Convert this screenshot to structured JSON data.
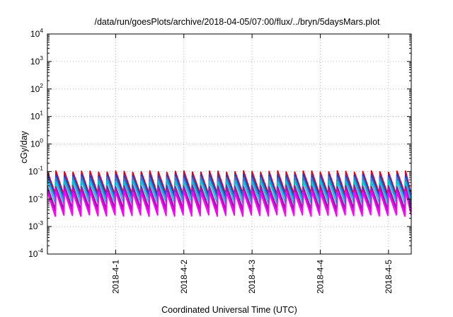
{
  "chart_data": {
    "type": "line",
    "title": "/data/run/goesPlots/archive/2018-04-05/07:00/flux/../bryn/5daysMars.plot",
    "xlabel": "Coordinated Universal Time (UTC)",
    "ylabel": "cGy/day",
    "yscale": "log",
    "ylim": [
      0.0001,
      10000
    ],
    "y_ticks": [
      {
        "base": "10",
        "exp": "-4"
      },
      {
        "base": "10",
        "exp": "-3"
      },
      {
        "base": "10",
        "exp": "-2"
      },
      {
        "base": "10",
        "exp": "-1"
      },
      {
        "base": "10",
        "exp": "0"
      },
      {
        "base": "10",
        "exp": "1"
      },
      {
        "base": "10",
        "exp": "2"
      },
      {
        "base": "10",
        "exp": "3"
      },
      {
        "base": "10",
        "exp": "4"
      }
    ],
    "xlim": [
      "2018-03-31T00:00",
      "2018-04-05T08:00"
    ],
    "x_ticks": [
      {
        "label": "2018-4-1",
        "date": "2018-04-01T00:00"
      },
      {
        "label": "2018-4-2",
        "date": "2018-04-02T00:00"
      },
      {
        "label": "2018-4-3",
        "date": "2018-04-03T00:00"
      },
      {
        "label": "2018-4-4",
        "date": "2018-04-04T00:00"
      },
      {
        "label": "2018-4-5",
        "date": "2018-04-05T00:00"
      }
    ],
    "grid": true,
    "legend": "none",
    "pattern": "sawtooth",
    "period_hours": 3,
    "series": [
      {
        "color": "#e0001e",
        "peak": 0.1,
        "trough": 0.015
      },
      {
        "color": "#1e3cd2",
        "peak": 0.075,
        "trough": 0.012
      },
      {
        "color": "#2e7dd8",
        "peak": 0.06,
        "trough": 0.01
      },
      {
        "color": "#00c8d2",
        "peak": 0.045,
        "trough": 0.007
      },
      {
        "color": "#7a2a9a",
        "peak": 0.03,
        "trough": 0.0045
      },
      {
        "color": "#c800c8",
        "peak": 0.024,
        "trough": 0.0035
      },
      {
        "color": "#ff00ff",
        "peak": 0.018,
        "trough": 0.0025
      }
    ]
  }
}
